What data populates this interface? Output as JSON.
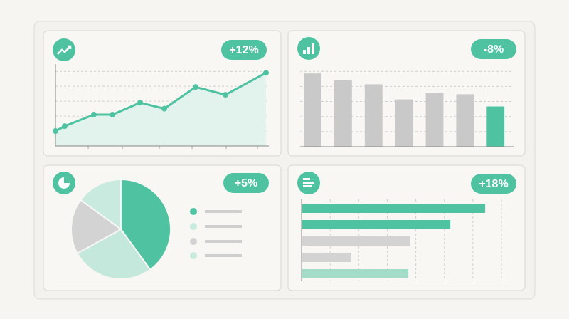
{
  "chart_data": [
    {
      "type": "line",
      "annotation": "+12%",
      "color": "#4fc3a1",
      "x": [
        0,
        13,
        54,
        80,
        119,
        153,
        197,
        239,
        296
      ],
      "xlim": [
        0,
        300
      ],
      "xticks": [
        46,
        94,
        146,
        192,
        240,
        284
      ],
      "values": [
        1.0,
        1.33,
        2.1,
        2.1,
        2.9,
        2.5,
        3.95,
        3.43,
        4.9
      ],
      "ylim": [
        0,
        5.2
      ],
      "yticks": [
        1,
        2,
        3,
        4,
        5
      ],
      "grid": true
    },
    {
      "type": "bar",
      "annotation": "-8%",
      "categories": [
        null,
        null,
        null,
        null,
        null,
        null,
        null
      ],
      "values": [
        4.86,
        4.43,
        4.14,
        3.14,
        3.57,
        3.48,
        2.67
      ],
      "colors": [
        "#c9c9c9",
        "#c9c9c9",
        "#c9c9c9",
        "#c9c9c9",
        "#c9c9c9",
        "#c9c9c9",
        "#4fc3a1"
      ],
      "ylim": [
        0,
        5.2
      ],
      "yticks": [
        1,
        2,
        3,
        4,
        5
      ],
      "grid": true
    },
    {
      "type": "pie",
      "annotation": "+5%",
      "values": [
        40,
        27,
        18,
        15
      ],
      "colors": [
        "#4fc3a1",
        "#c4e8dc",
        "#d3d3d3",
        "#c9ebdf"
      ]
    },
    {
      "type": "hbar",
      "annotation": "+18%",
      "categories": [
        null,
        null,
        null,
        null,
        null
      ],
      "values": [
        6.43,
        5.21,
        3.81,
        1.74,
        3.74
      ],
      "colors": [
        "#4fc3a1",
        "#4fc3a1",
        "#d3d3d3",
        "#d3d3d3",
        "#a3dcc9"
      ],
      "xlim": [
        0,
        7
      ],
      "xticks": [
        1,
        2,
        3,
        4,
        5,
        6,
        7
      ],
      "grid": true
    }
  ]
}
